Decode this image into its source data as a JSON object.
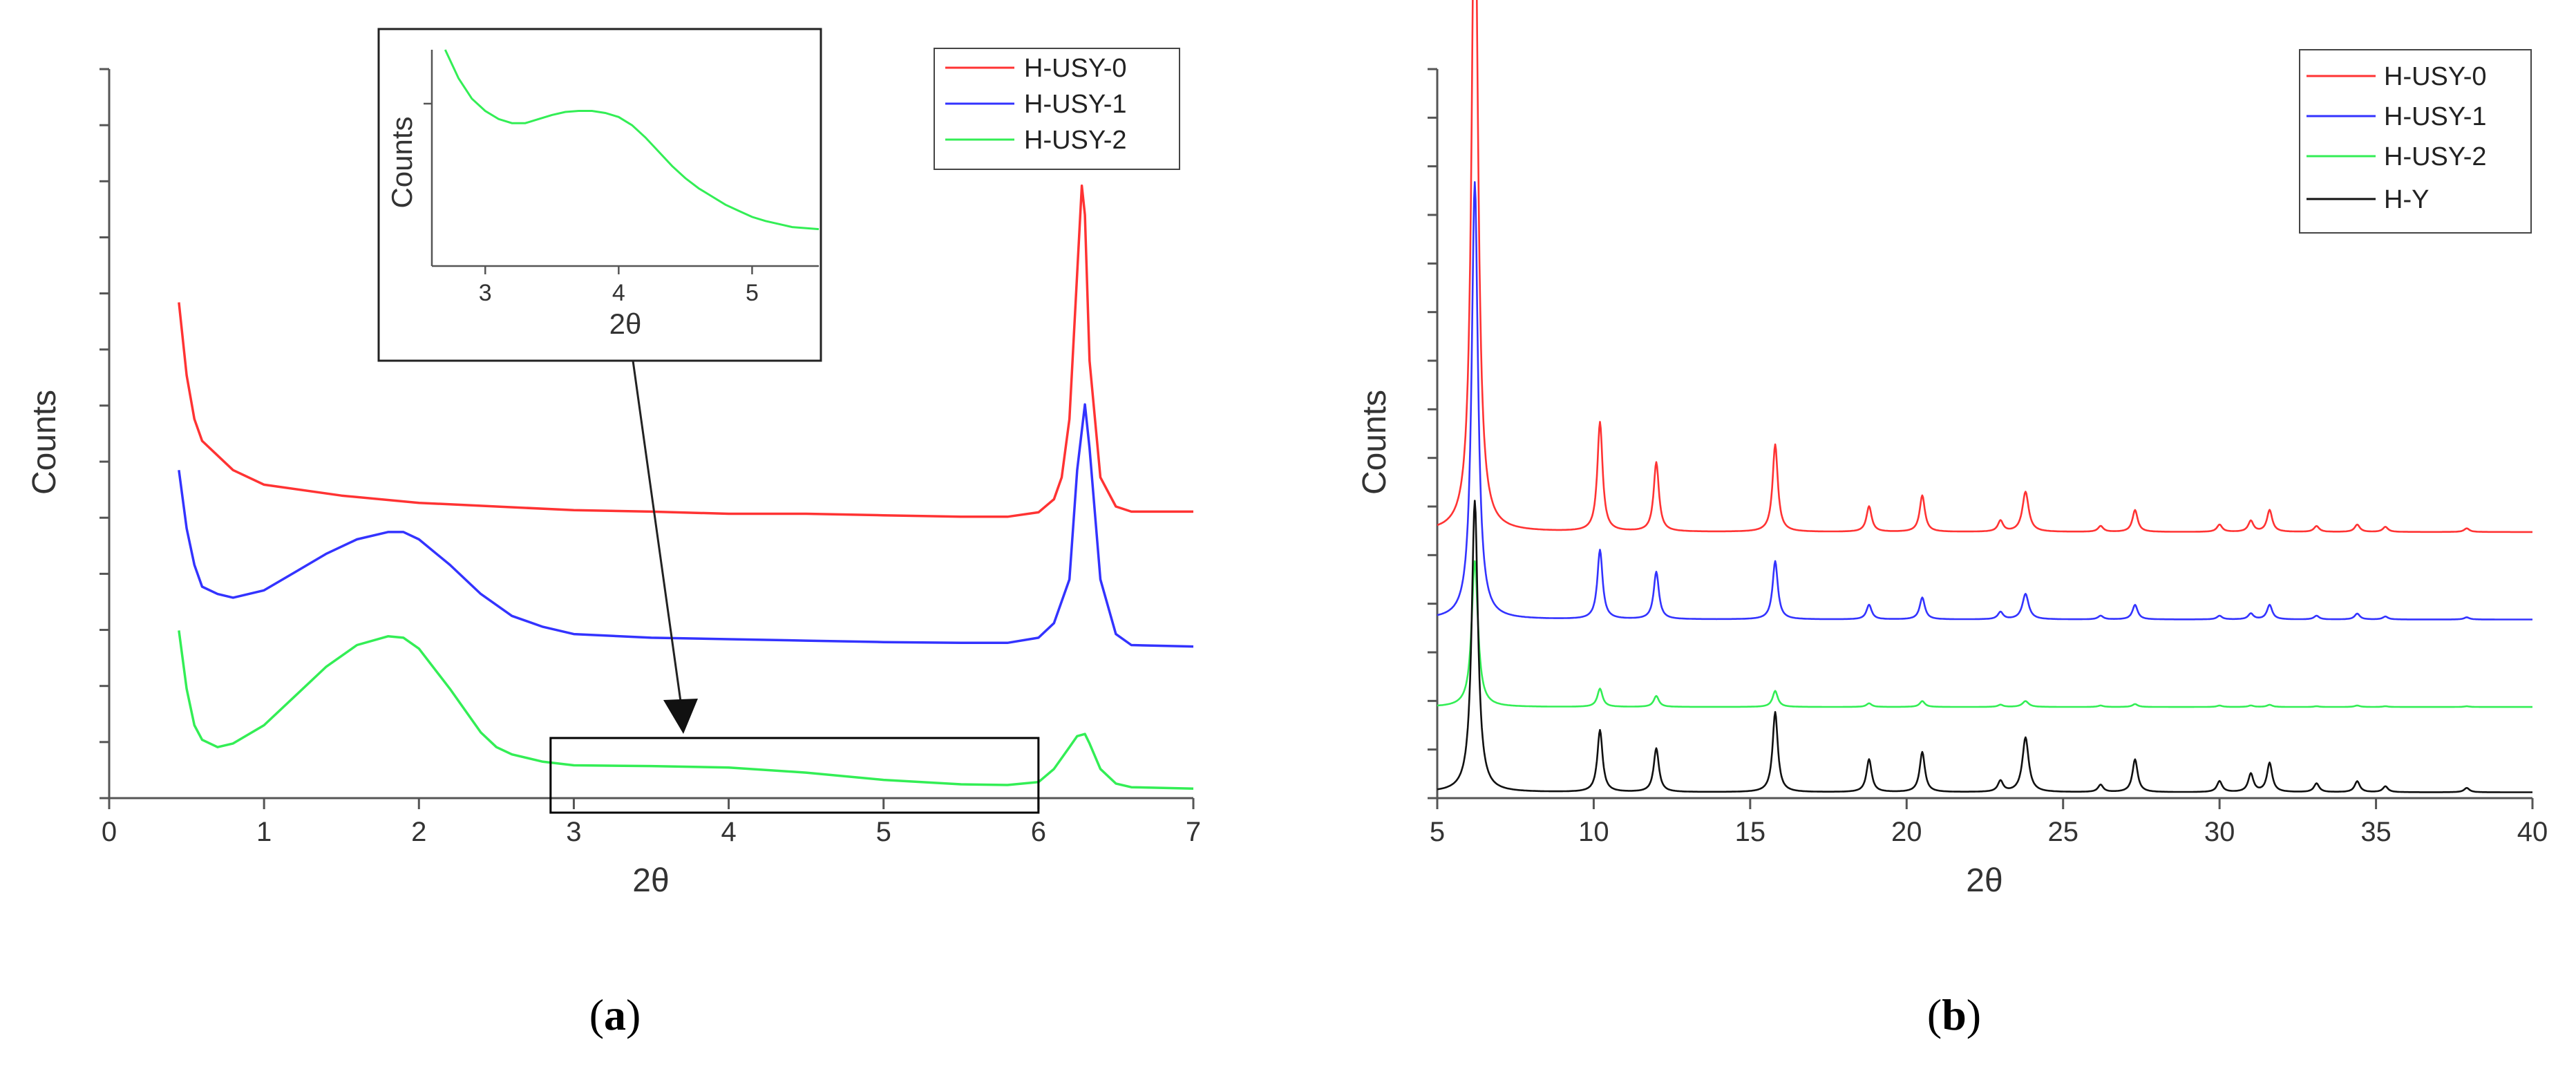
{
  "chart_data": [
    {
      "panel": "a",
      "type": "line",
      "caption": {
        "open": "(",
        "letter": "a",
        "close": ")"
      },
      "xlabel": "2θ",
      "ylabel": "Counts",
      "xlim": [
        0,
        7
      ],
      "ylim": [
        0,
        100
      ],
      "xticks": [
        0,
        1,
        2,
        3,
        4,
        5,
        6,
        7
      ],
      "grid": false,
      "legend_position": "top-right",
      "series": [
        {
          "name": "H-USY-0",
          "color": "#ff3333",
          "x": [
            0.45,
            0.5,
            0.55,
            0.6,
            0.7,
            0.8,
            1.0,
            1.5,
            2.0,
            2.5,
            3.0,
            3.5,
            4.0,
            4.5,
            5.0,
            5.5,
            5.8,
            6.0,
            6.1,
            6.15,
            6.2,
            6.25,
            6.28,
            6.3,
            6.33,
            6.4,
            6.5,
            6.6,
            7.0
          ],
          "y": [
            68,
            58,
            52,
            49,
            47,
            45,
            43,
            41.5,
            40.5,
            40,
            39.5,
            39.3,
            39,
            39,
            38.8,
            38.6,
            38.6,
            39.2,
            41,
            44,
            52,
            72,
            84,
            80,
            60,
            44,
            40,
            39.3,
            39.3
          ]
        },
        {
          "name": "H-USY-1",
          "color": "#3333ff",
          "x": [
            0.45,
            0.5,
            0.55,
            0.6,
            0.7,
            0.8,
            1.0,
            1.2,
            1.4,
            1.6,
            1.8,
            1.9,
            2.0,
            2.2,
            2.4,
            2.6,
            2.8,
            3.0,
            3.5,
            4.0,
            4.5,
            5.0,
            5.5,
            5.8,
            6.0,
            6.1,
            6.2,
            6.25,
            6.3,
            6.33,
            6.4,
            6.5,
            6.6,
            7.0
          ],
          "y": [
            45,
            37,
            32,
            29,
            28,
            27.5,
            28.5,
            31,
            33.5,
            35.5,
            36.5,
            36.5,
            35.5,
            32,
            28,
            25,
            23.5,
            22.5,
            22,
            21.8,
            21.6,
            21.4,
            21.3,
            21.3,
            22,
            24,
            30,
            45,
            54,
            48,
            30,
            22.5,
            21,
            20.8
          ]
        },
        {
          "name": "H-USY-2",
          "color": "#33ee55",
          "x": [
            0.45,
            0.5,
            0.55,
            0.6,
            0.7,
            0.8,
            1.0,
            1.2,
            1.4,
            1.6,
            1.8,
            1.9,
            2.0,
            2.2,
            2.4,
            2.5,
            2.6,
            2.8,
            3.0,
            3.5,
            4.0,
            4.5,
            5.0,
            5.5,
            5.8,
            6.0,
            6.1,
            6.2,
            6.25,
            6.3,
            6.33,
            6.4,
            6.5,
            6.6,
            7.0
          ],
          "y": [
            23,
            15,
            10,
            8,
            7,
            7.5,
            10,
            14,
            18,
            21,
            22.2,
            22,
            20.5,
            15,
            9,
            7,
            6,
            5,
            4.5,
            4.4,
            4.2,
            3.5,
            2.5,
            1.9,
            1.8,
            2.2,
            4,
            7,
            8.5,
            8.8,
            7.5,
            4,
            2,
            1.5,
            1.3
          ]
        }
      ],
      "zoom_box_x": [
        2.85,
        6.0
      ],
      "inset": {
        "xlabel": "2θ",
        "ylabel": "Counts",
        "xlim": [
          2.6,
          5.5
        ],
        "xticks": [
          3,
          4,
          5
        ],
        "series_color": "#33ee55",
        "x": [
          2.7,
          2.8,
          2.9,
          3.0,
          3.1,
          3.2,
          3.3,
          3.4,
          3.5,
          3.6,
          3.7,
          3.8,
          3.9,
          4.0,
          4.1,
          4.2,
          4.3,
          4.4,
          4.5,
          4.6,
          4.7,
          4.8,
          4.9,
          5.0,
          5.1,
          5.2,
          5.3,
          5.4,
          5.5
        ],
        "y": [
          100,
          86,
          76,
          70,
          66,
          64,
          64,
          66,
          68,
          69.5,
          70,
          70,
          69,
          67,
          63,
          57,
          50,
          43,
          37,
          32,
          28,
          24,
          21,
          18,
          16,
          14.5,
          13,
          12.5,
          12
        ]
      }
    },
    {
      "panel": "b",
      "type": "line",
      "caption": {
        "open": "(",
        "letter": "b",
        "close": ")"
      },
      "xlabel": "2θ",
      "ylabel": "Counts",
      "xlim": [
        5,
        40
      ],
      "ylim": [
        0,
        100
      ],
      "xticks": [
        5,
        10,
        15,
        20,
        25,
        30,
        35,
        40
      ],
      "grid": false,
      "legend_position": "top-right",
      "peaks": [
        {
          "x": 6.2,
          "w": 0.12
        },
        {
          "x": 10.2,
          "w": 0.1
        },
        {
          "x": 12.0,
          "w": 0.1
        },
        {
          "x": 15.8,
          "w": 0.1
        },
        {
          "x": 18.8,
          "w": 0.1
        },
        {
          "x": 20.5,
          "w": 0.1
        },
        {
          "x": 23.0,
          "w": 0.1
        },
        {
          "x": 23.8,
          "w": 0.12
        },
        {
          "x": 26.2,
          "w": 0.1
        },
        {
          "x": 27.3,
          "w": 0.1
        },
        {
          "x": 30.0,
          "w": 0.1
        },
        {
          "x": 31.0,
          "w": 0.1
        },
        {
          "x": 31.6,
          "w": 0.1
        },
        {
          "x": 33.1,
          "w": 0.1
        },
        {
          "x": 34.4,
          "w": 0.1
        },
        {
          "x": 35.3,
          "w": 0.1
        },
        {
          "x": 37.9,
          "w": 0.1
        }
      ],
      "series": [
        {
          "name": "H-USY-0",
          "color": "#ff3333",
          "baseline": 36.5,
          "intensities": [
            95,
            15,
            9.5,
            12,
            3.5,
            5,
            1.5,
            5.5,
            0.8,
            3,
            1,
            1.5,
            3,
            0.8,
            1,
            0.7,
            0.5
          ]
        },
        {
          "name": "H-USY-1",
          "color": "#3333ff",
          "baseline": 24.5,
          "intensities": [
            60,
            9.5,
            6.5,
            8,
            2,
            3,
            1,
            3.5,
            0.5,
            2,
            0.5,
            0.8,
            2,
            0.5,
            0.8,
            0.4,
            0.3
          ]
        },
        {
          "name": "H-USY-2",
          "color": "#33ee55",
          "baseline": 12.5,
          "intensities": [
            20,
            2.5,
            1.5,
            2.2,
            0.5,
            0.8,
            0.3,
            0.8,
            0.2,
            0.4,
            0.2,
            0.2,
            0.3,
            0.1,
            0.2,
            0.1,
            0.1
          ]
        },
        {
          "name": "H-Y",
          "color": "#111111",
          "baseline": 0.8,
          "intensities": [
            40,
            8.5,
            6,
            11,
            4.5,
            5.5,
            1.5,
            7.5,
            1,
            4.5,
            1.5,
            2.5,
            4,
            1.2,
            1.5,
            0.8,
            0.6
          ]
        }
      ]
    }
  ]
}
